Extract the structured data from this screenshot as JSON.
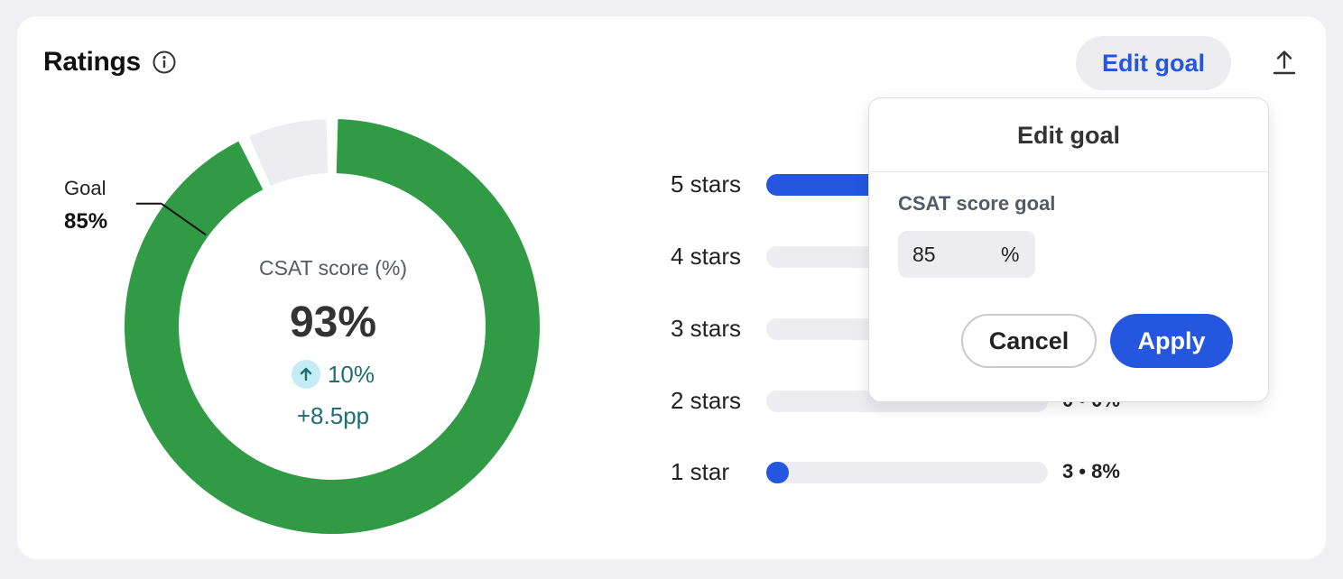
{
  "header": {
    "title": "Ratings",
    "edit_goal_label": "Edit goal"
  },
  "icons": {
    "info": "info-circle-icon",
    "export": "upload-icon",
    "trend": "arrow-up-icon"
  },
  "colors": {
    "score_ring": "#309a44",
    "ring_remainder": "#ededf1",
    "bar_fill": "#2456e0",
    "bar_track": "#ededf1",
    "accent": "#2456e0",
    "trend": "#1e6e76"
  },
  "donut": {
    "score_percent": 93,
    "goal_percent": 85,
    "goal_label": "Goal",
    "goal_value": "85%",
    "center_label": "CSAT score (%)",
    "center_value": "93%",
    "trend_value": "10%",
    "trend_pp": "+8.5pp"
  },
  "ratings": [
    {
      "label": "5 stars",
      "fill": 0.9,
      "count": ""
    },
    {
      "label": "4 stars",
      "fill": 0,
      "count": ""
    },
    {
      "label": "3 stars",
      "fill": 0,
      "count": ""
    },
    {
      "label": "2 stars",
      "fill": 0,
      "count": "0 • 0%"
    },
    {
      "label": "1 star",
      "fill": 0.08,
      "count": "3 • 8%"
    }
  ],
  "popover": {
    "title": "Edit goal",
    "field_label": "CSAT score goal",
    "value": "85",
    "unit": "%",
    "cancel_label": "Cancel",
    "apply_label": "Apply"
  }
}
